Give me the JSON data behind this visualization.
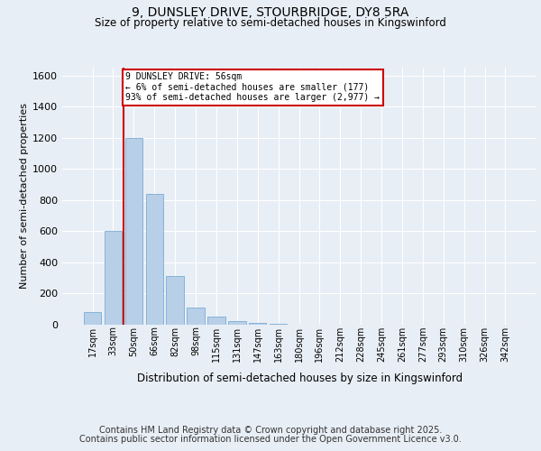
{
  "title1": "9, DUNSLEY DRIVE, STOURBRIDGE, DY8 5RA",
  "title2": "Size of property relative to semi-detached houses in Kingswinford",
  "xlabel": "Distribution of semi-detached houses by size in Kingswinford",
  "ylabel": "Number of semi-detached properties",
  "footer1": "Contains HM Land Registry data © Crown copyright and database right 2025.",
  "footer2": "Contains public sector information licensed under the Open Government Licence v3.0.",
  "annotation_line1": "9 DUNSLEY DRIVE: 56sqm",
  "annotation_line2": "← 6% of semi-detached houses are smaller (177)",
  "annotation_line3": "93% of semi-detached houses are larger (2,977) →",
  "bar_labels": [
    "17sqm",
    "33sqm",
    "50sqm",
    "66sqm",
    "82sqm",
    "98sqm",
    "115sqm",
    "131sqm",
    "147sqm",
    "163sqm",
    "180sqm",
    "196sqm",
    "212sqm",
    "228sqm",
    "245sqm",
    "261sqm",
    "277sqm",
    "293sqm",
    "310sqm",
    "326sqm",
    "342sqm"
  ],
  "bar_values": [
    80,
    600,
    1200,
    840,
    310,
    110,
    50,
    25,
    10,
    5,
    0,
    0,
    0,
    0,
    0,
    0,
    0,
    0,
    0,
    0,
    0
  ],
  "bar_color": "#b8cfe8",
  "bar_edge_color": "#7aacd4",
  "ylim": [
    0,
    1650
  ],
  "yticks": [
    0,
    200,
    400,
    600,
    800,
    1000,
    1200,
    1400,
    1600
  ],
  "background_color": "#e8eef5",
  "plot_bg_color": "#e8eef5",
  "grid_color": "#ffffff",
  "annotation_box_color": "#ffffff",
  "annotation_box_edge": "#cc0000",
  "red_line_color": "#cc0000",
  "title1_fontsize": 10,
  "title2_fontsize": 8.5,
  "axis_label_fontsize": 8,
  "tick_fontsize": 8,
  "xtick_fontsize": 7,
  "footer_fontsize": 7,
  "red_line_x": 1.5
}
